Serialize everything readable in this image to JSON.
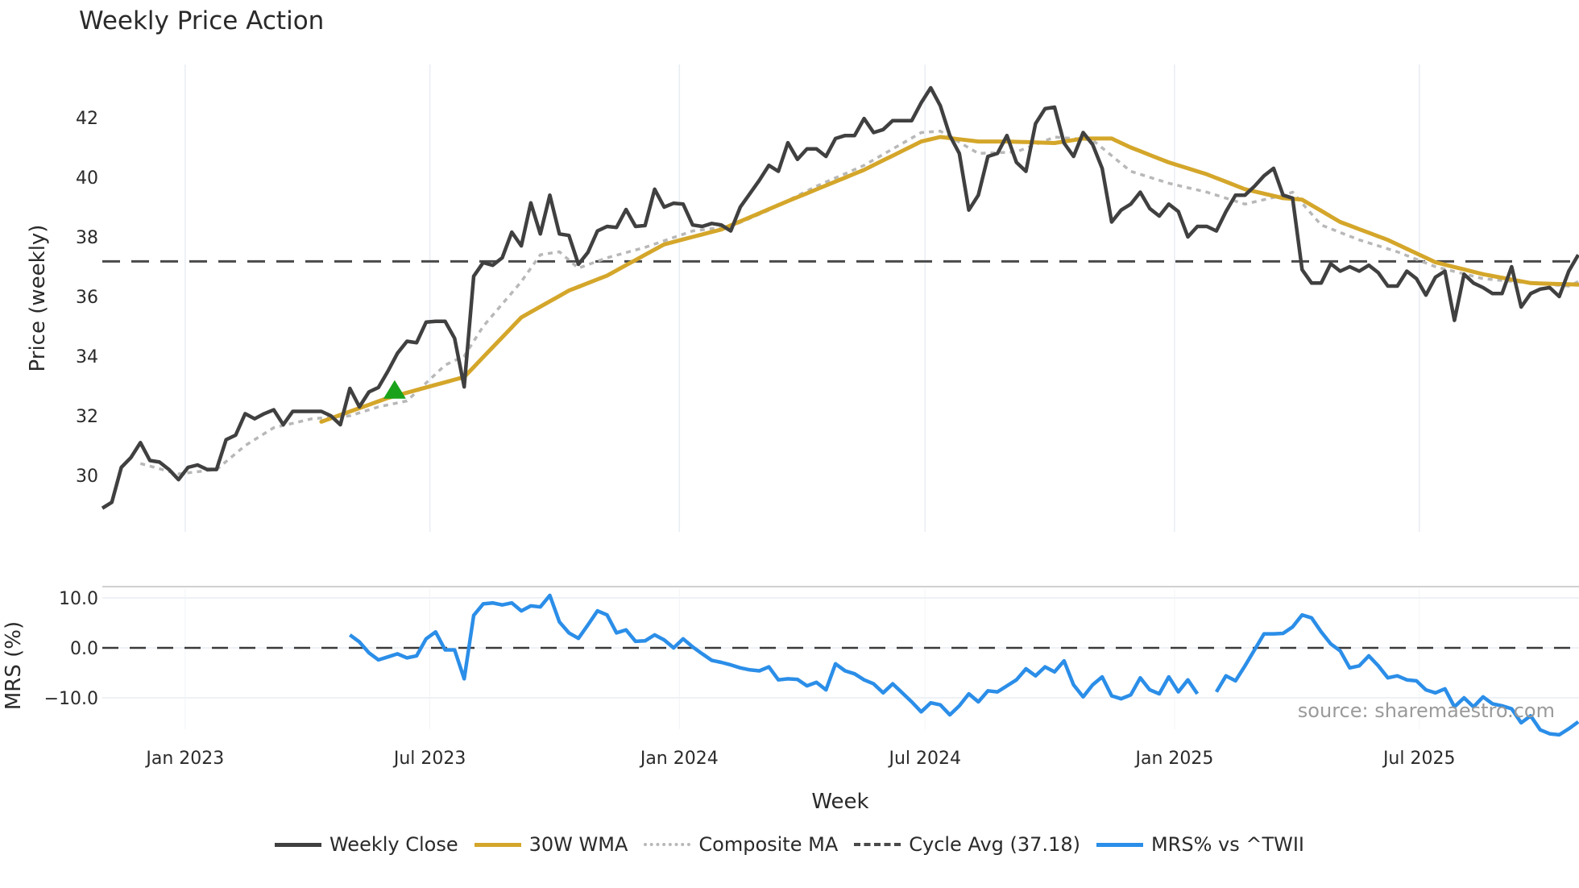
{
  "title": "Weekly Price Action",
  "source_text": "source: sharemaestro.com",
  "colors": {
    "close": "#404040",
    "wma": "#d4a62a",
    "composite": "#b8b8b8",
    "cycle": "#4a4a4a",
    "mrs": "#2b8ee8",
    "buy_marker": "#1aa31a",
    "grid": "#e8edf3"
  },
  "legend": [
    {
      "key": "close",
      "label": "Weekly Close",
      "style": "solid"
    },
    {
      "key": "wma",
      "label": "30W WMA",
      "style": "solid"
    },
    {
      "key": "composite",
      "label": "Composite MA",
      "style": "dotted"
    },
    {
      "key": "cycle",
      "label": "Cycle Avg (37.18)",
      "style": "dashed"
    },
    {
      "key": "mrs",
      "label": "MRS% vs ^TWII",
      "style": "solid"
    }
  ],
  "chart_data": [
    {
      "type": "line",
      "title": "Weekly Price Action",
      "xlabel": "Week",
      "ylabel": "Price (weekly)",
      "ylim": [
        28.5,
        43.4
      ],
      "yticks": [
        30,
        32,
        34,
        36,
        38,
        40,
        42
      ],
      "xticks": [
        {
          "label": "Jan 2023",
          "index": 8.7
        },
        {
          "label": "Jul 2023",
          "index": 34.4
        },
        {
          "label": "Jan 2024",
          "index": 60.6
        },
        {
          "label": "Jul 2024",
          "index": 86.4
        },
        {
          "label": "Jan 2025",
          "index": 112.6
        },
        {
          "label": "Jul 2025",
          "index": 138.3
        }
      ],
      "grid": true,
      "legend_position": "bottom",
      "series": [
        {
          "name": "Weekly Close",
          "values": [
            28.9,
            29.1,
            30.27,
            30.6,
            31.1,
            30.5,
            30.45,
            30.2,
            29.86,
            30.27,
            30.35,
            30.2,
            30.2,
            31.2,
            31.35,
            32.07,
            31.9,
            32.07,
            32.2,
            31.7,
            32.15,
            32.15,
            32.15,
            32.15,
            32.0,
            31.7,
            32.92,
            32.3,
            32.8,
            32.95,
            33.5,
            34.1,
            34.5,
            34.45,
            35.14,
            35.17,
            35.17,
            34.6,
            32.97,
            36.68,
            37.14,
            37.05,
            37.3,
            38.16,
            37.7,
            39.14,
            38.1,
            39.4,
            38.1,
            38.05,
            37.08,
            37.48,
            38.2,
            38.35,
            38.32,
            38.92,
            38.35,
            38.38,
            39.6,
            39.0,
            39.13,
            39.1,
            38.4,
            38.35,
            38.45,
            38.4,
            38.2,
            39.0,
            39.45,
            39.9,
            40.4,
            40.2,
            41.16,
            40.6,
            40.95,
            40.95,
            40.7,
            41.3,
            41.4,
            41.4,
            41.97,
            41.5,
            41.6,
            41.9,
            41.9,
            41.9,
            42.5,
            43.0,
            42.4,
            41.4,
            40.8,
            38.9,
            39.4,
            40.7,
            40.8,
            41.4,
            40.5,
            40.2,
            41.8,
            42.3,
            42.35,
            41.15,
            40.7,
            41.5,
            41.1,
            40.3,
            38.5,
            38.9,
            39.1,
            39.5,
            38.95,
            38.7,
            39.1,
            38.85,
            38.0,
            38.35,
            38.35,
            38.2,
            38.85,
            39.4,
            39.4,
            39.7,
            40.05,
            40.3,
            39.4,
            39.3,
            36.9,
            36.45,
            36.45,
            37.1,
            36.85,
            37.0,
            36.85,
            37.05,
            36.8,
            36.35,
            36.35,
            36.85,
            36.6,
            36.05,
            36.65,
            36.85,
            35.2,
            36.75,
            36.45,
            36.3,
            36.1,
            36.1,
            37.0,
            35.65,
            36.1,
            36.25,
            36.3,
            36.0,
            36.85,
            37.4
          ]
        },
        {
          "name": "30W WMA",
          "keypoints": [
            [
              23,
              31.8
            ],
            [
              30,
              32.6
            ],
            [
              38,
              33.3
            ],
            [
              44,
              35.3
            ],
            [
              49,
              36.2
            ],
            [
              53,
              36.7
            ],
            [
              59,
              37.75
            ],
            [
              65,
              38.25
            ],
            [
              72,
              39.2
            ],
            [
              80,
              40.25
            ],
            [
              86,
              41.2
            ],
            [
              88,
              41.35
            ],
            [
              92,
              41.2
            ],
            [
              95,
              41.2
            ],
            [
              100,
              41.15
            ],
            [
              103,
              41.3
            ],
            [
              106,
              41.3
            ],
            [
              108,
              41.0
            ],
            [
              112,
              40.5
            ],
            [
              116,
              40.1
            ],
            [
              120,
              39.6
            ],
            [
              124,
              39.3
            ],
            [
              126,
              39.25
            ],
            [
              130,
              38.5
            ],
            [
              135,
              37.9
            ],
            [
              140,
              37.15
            ],
            [
              145,
              36.75
            ],
            [
              150,
              36.45
            ],
            [
              155,
              36.4
            ]
          ]
        },
        {
          "name": "Composite MA",
          "keypoints": [
            [
              4,
              30.4
            ],
            [
              8,
              30.05
            ],
            [
              12,
              30.2
            ],
            [
              15,
              31.0
            ],
            [
              18,
              31.6
            ],
            [
              22,
              31.9
            ],
            [
              26,
              32.0
            ],
            [
              29,
              32.3
            ],
            [
              32,
              32.5
            ],
            [
              36,
              33.7
            ],
            [
              38,
              34.0
            ],
            [
              40,
              35.0
            ],
            [
              44,
              36.5
            ],
            [
              46,
              37.4
            ],
            [
              48,
              37.5
            ],
            [
              50,
              36.95
            ],
            [
              53,
              37.3
            ],
            [
              57,
              37.65
            ],
            [
              62,
              38.2
            ],
            [
              66,
              38.35
            ],
            [
              70,
              38.9
            ],
            [
              75,
              39.7
            ],
            [
              80,
              40.4
            ],
            [
              86,
              41.5
            ],
            [
              88,
              41.55
            ],
            [
              92,
              40.8
            ],
            [
              96,
              40.85
            ],
            [
              100,
              41.35
            ],
            [
              104,
              41.25
            ],
            [
              108,
              40.2
            ],
            [
              112,
              39.8
            ],
            [
              116,
              39.5
            ],
            [
              120,
              39.1
            ],
            [
              124,
              39.4
            ],
            [
              125,
              39.5
            ],
            [
              128,
              38.4
            ],
            [
              132,
              37.9
            ],
            [
              136,
              37.5
            ],
            [
              140,
              37.0
            ],
            [
              145,
              36.6
            ],
            [
              150,
              36.45
            ],
            [
              154,
              36.35
            ],
            [
              155,
              36.5
            ]
          ]
        },
        {
          "name": "Cycle Avg (37.18)",
          "constant": 37.18
        }
      ],
      "annotations": [
        {
          "type": "buy-marker",
          "shape": "triangle-up",
          "index": 30.7,
          "value": 32.87
        }
      ]
    },
    {
      "type": "line",
      "ylabel": "MRS (%)",
      "ylim": [
        -19.2,
        13.4
      ],
      "yticks": [
        {
          "value": 10,
          "label": "10.0"
        },
        {
          "value": 0,
          "label": "0.0"
        },
        {
          "value": -10,
          "label": "−10.0"
        }
      ],
      "reference_line": 0,
      "series": [
        {
          "name": "MRS% vs ^TWII",
          "start_index": 26,
          "values": [
            2.6,
            1.2,
            -1.0,
            -2.4,
            -1.8,
            -1.2,
            -2.0,
            -1.6,
            1.8,
            3.2,
            -0.4,
            -0.4,
            -6.2,
            6.5,
            8.8,
            9.0,
            8.6,
            9.0,
            7.4,
            8.4,
            8.2,
            10.5,
            5.2,
            3.0,
            1.9,
            4.6,
            7.4,
            6.6,
            3.0,
            3.6,
            1.3,
            1.4,
            2.6,
            1.6,
            0.0,
            1.8,
            0.2,
            -1.2,
            -2.5,
            -2.9,
            -3.4,
            -4.0,
            -4.4,
            -4.6,
            -3.8,
            -6.4,
            -6.2,
            -6.3,
            -7.6,
            -6.9,
            -8.4,
            -3.2,
            -4.6,
            -5.2,
            -6.4,
            -7.2,
            -9.0,
            -7.2,
            -9.0,
            -10.8,
            -12.8,
            -11.0,
            -11.4,
            -13.4,
            -11.6,
            -9.2,
            -10.8,
            -8.6,
            -8.8,
            -7.6,
            -6.4,
            -4.2,
            -5.6,
            -3.8,
            -4.8,
            -2.6,
            -7.4,
            -9.8,
            -7.4,
            -5.8,
            -9.6,
            -10.2,
            -9.4,
            -6.0,
            -8.4,
            -9.2,
            -5.8,
            -8.8,
            -6.4,
            -9.2,
            null,
            -8.8,
            -5.6,
            -6.6,
            -3.6,
            -0.4,
            2.8,
            2.8,
            2.9,
            4.2,
            6.6,
            6.0,
            3.2,
            0.8,
            -0.6,
            -4.0,
            -3.6,
            -1.6,
            -3.6,
            -6.0,
            -5.6,
            -6.4,
            -6.6,
            -8.4,
            -9.0,
            -8.2,
            -11.8,
            -10.0,
            -11.8,
            -9.8,
            -11.2,
            -11.6,
            -12.2,
            -15.0,
            -13.6,
            -16.4,
            -17.2,
            -17.4,
            -16.2,
            -14.8
          ]
        }
      ]
    }
  ]
}
